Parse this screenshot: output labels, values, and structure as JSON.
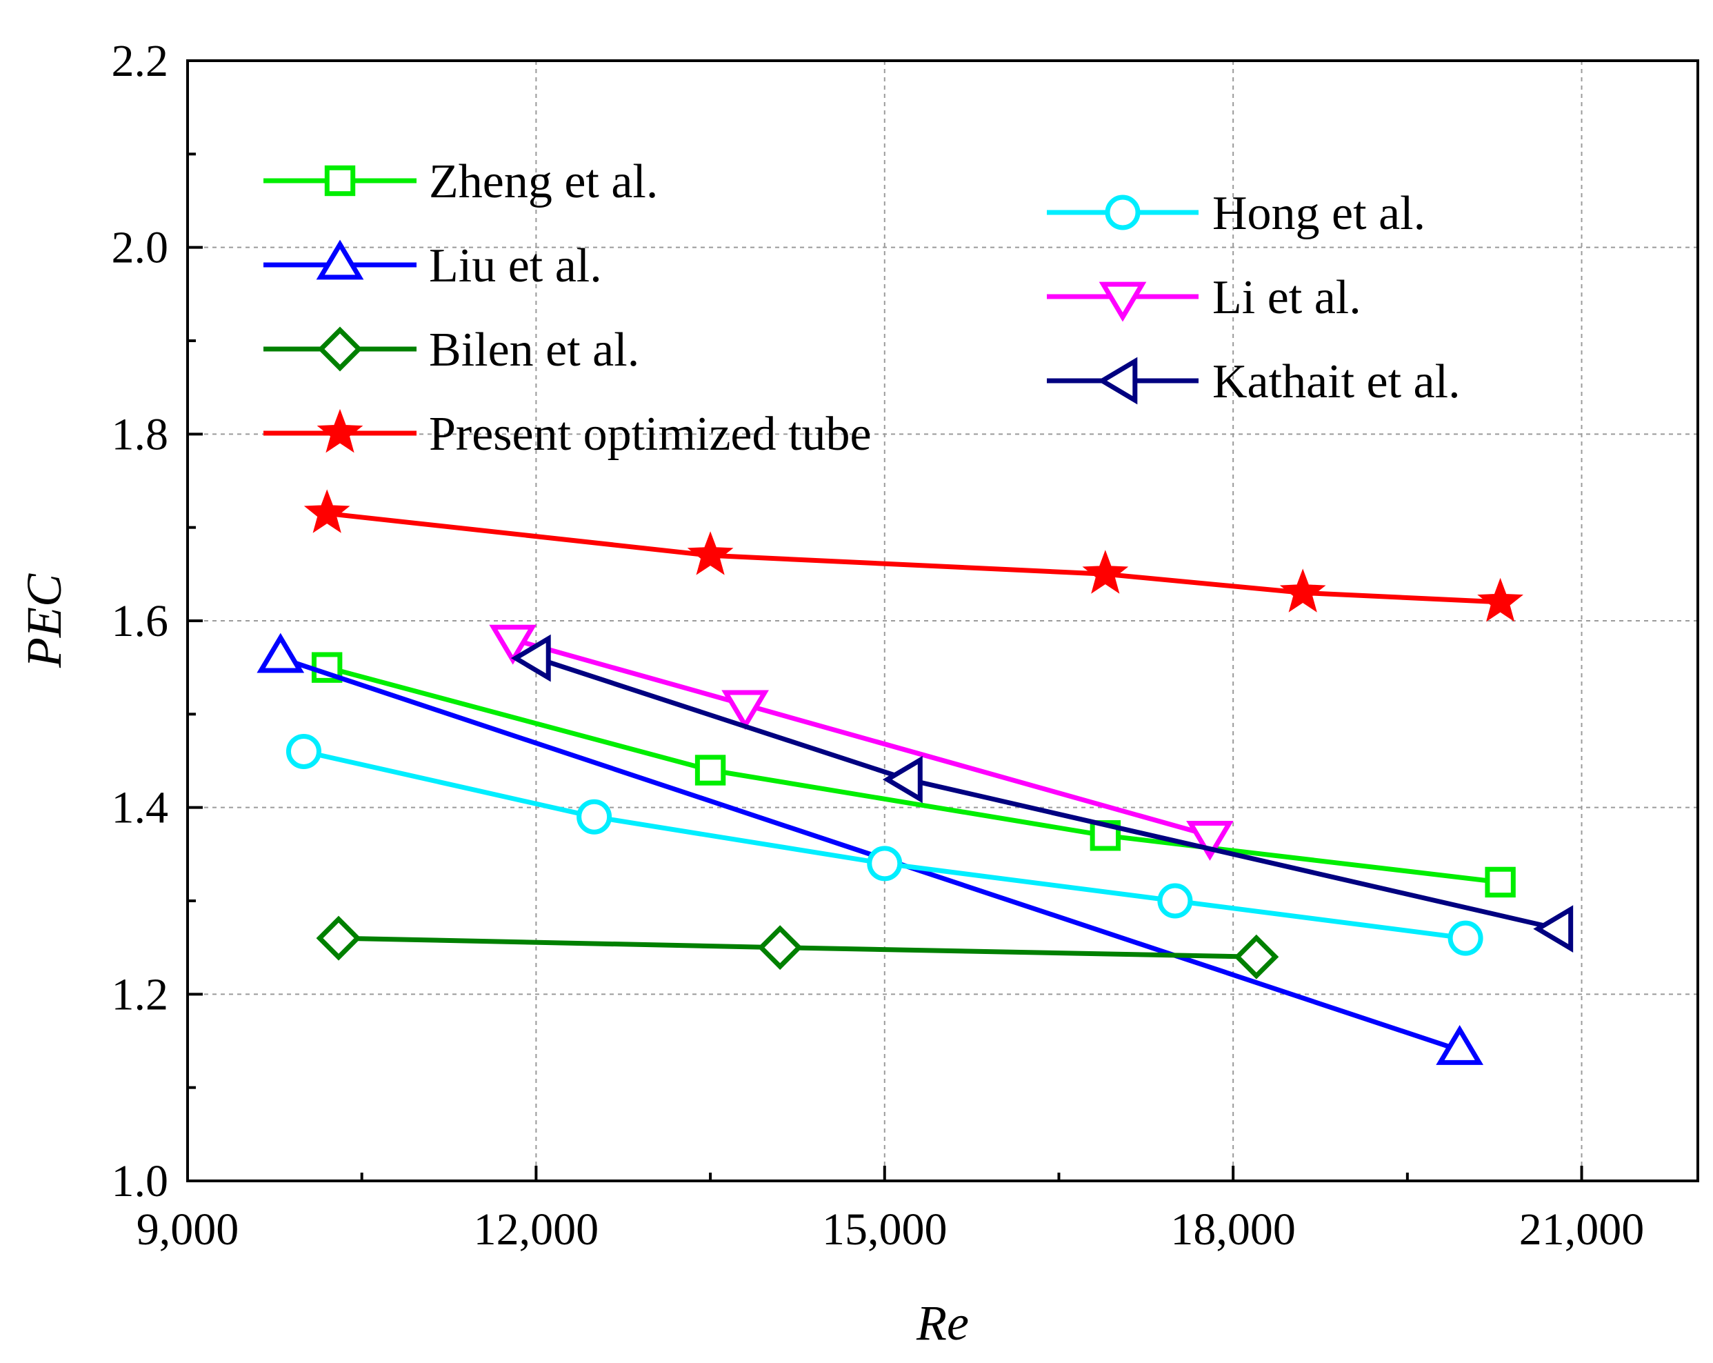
{
  "chart_data": {
    "type": "line",
    "title": "",
    "xlabel": "Re",
    "ylabel": "PEC",
    "xlim": [
      9000,
      22000
    ],
    "ylim": [
      1.0,
      2.2
    ],
    "x_ticks": [
      9000,
      12000,
      15000,
      18000,
      21000
    ],
    "x_tick_labels": [
      "9,000",
      "12,000",
      "15,000",
      "18,000",
      "21,000"
    ],
    "y_ticks": [
      1.0,
      1.2,
      1.4,
      1.6,
      1.8,
      2.0,
      2.2
    ],
    "y_tick_labels": [
      "1.0",
      "1.2",
      "1.4",
      "1.6",
      "1.8",
      "2.0",
      "2.2"
    ],
    "grid": true,
    "legend_position": "top-left and top-right, two columns",
    "series": [
      {
        "name": "Zheng et al.",
        "color": "#00ee00",
        "marker": "square",
        "legend_column": 0,
        "points": [
          {
            "x": 10200,
            "y": 1.55
          },
          {
            "x": 13500,
            "y": 1.44
          },
          {
            "x": 16900,
            "y": 1.37
          },
          {
            "x": 20300,
            "y": 1.32
          }
        ]
      },
      {
        "name": "Liu et al.",
        "color": "#0000ff",
        "marker": "triangle-up",
        "legend_column": 0,
        "points": [
          {
            "x": 9800,
            "y": 1.56
          },
          {
            "x": 19950,
            "y": 1.14
          }
        ]
      },
      {
        "name": "Bilen et al.",
        "color": "#008000",
        "marker": "diamond",
        "legend_column": 0,
        "points": [
          {
            "x": 10300,
            "y": 1.26
          },
          {
            "x": 14100,
            "y": 1.25
          },
          {
            "x": 18200,
            "y": 1.24
          }
        ]
      },
      {
        "name": "Present optimized tube",
        "color": "#ff0000",
        "marker": "star",
        "legend_column": 0,
        "points": [
          {
            "x": 10200,
            "y": 1.715
          },
          {
            "x": 13500,
            "y": 1.67
          },
          {
            "x": 16900,
            "y": 1.65
          },
          {
            "x": 18600,
            "y": 1.63
          },
          {
            "x": 20300,
            "y": 1.62
          }
        ]
      },
      {
        "name": "Hong et al.",
        "color": "#00eeff",
        "marker": "circle",
        "legend_column": 1,
        "points": [
          {
            "x": 10000,
            "y": 1.46
          },
          {
            "x": 12500,
            "y": 1.39
          },
          {
            "x": 15000,
            "y": 1.34
          },
          {
            "x": 17500,
            "y": 1.3
          },
          {
            "x": 20000,
            "y": 1.26
          }
        ]
      },
      {
        "name": "Li et al.",
        "color": "#ff00ff",
        "marker": "triangle-down",
        "legend_column": 1,
        "points": [
          {
            "x": 11800,
            "y": 1.58
          },
          {
            "x": 13800,
            "y": 1.51
          },
          {
            "x": 17800,
            "y": 1.37
          }
        ]
      },
      {
        "name": "Kathait et al.",
        "color": "#000080",
        "marker": "triangle-left",
        "legend_column": 1,
        "points": [
          {
            "x": 12000,
            "y": 1.56
          },
          {
            "x": 15200,
            "y": 1.43
          },
          {
            "x": 20800,
            "y": 1.27
          }
        ]
      }
    ]
  }
}
